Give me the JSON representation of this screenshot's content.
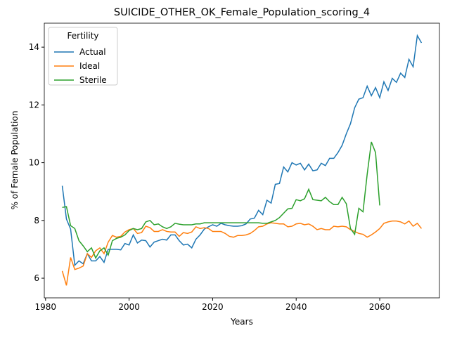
{
  "chart_data": {
    "type": "line",
    "title": "SUICIDE_OTHER_OK_Female_Population_scoring_4",
    "x_label": "Years",
    "y_label": "% of Female Population",
    "legend_title": "Fertility",
    "legend_loc": "upper left",
    "x": [
      1984,
      1985,
      1986,
      1987,
      1988,
      1989,
      1990,
      1991,
      1992,
      1993,
      1994,
      1995,
      1996,
      1997,
      1998,
      1999,
      2000,
      2001,
      2002,
      2003,
      2004,
      2005,
      2006,
      2007,
      2008,
      2009,
      2010,
      2011,
      2012,
      2013,
      2014,
      2015,
      2016,
      2017,
      2018,
      2019,
      2020,
      2021,
      2022,
      2023,
      2024,
      2025,
      2026,
      2027,
      2028,
      2029,
      2030,
      2031,
      2032,
      2033,
      2034,
      2035,
      2036,
      2037,
      2038,
      2039,
      2040,
      2041,
      2042,
      2043,
      2044,
      2045,
      2046,
      2047,
      2048,
      2049,
      2050,
      2051,
      2052,
      2053,
      2054,
      2055,
      2056,
      2057,
      2058,
      2059,
      2060,
      2061,
      2062,
      2063,
      2064,
      2065,
      2066,
      2067,
      2068,
      2069,
      2070
    ],
    "series": [
      {
        "name": "Actual",
        "color": "#1f77b4",
        "values": [
          9.2,
          8.05,
          7.7,
          6.45,
          6.6,
          6.5,
          6.85,
          6.6,
          6.6,
          6.75,
          6.55,
          7.0,
          7.0,
          7.0,
          6.98,
          7.2,
          7.15,
          7.5,
          7.22,
          7.32,
          7.3,
          7.08,
          7.25,
          7.3,
          7.35,
          7.32,
          7.5,
          7.5,
          7.3,
          7.15,
          7.18,
          7.05,
          7.35,
          7.5,
          7.7,
          7.78,
          7.85,
          7.8,
          7.9,
          7.85,
          7.82,
          7.8,
          7.8,
          7.82,
          7.88,
          8.05,
          8.08,
          8.35,
          8.2,
          8.7,
          8.6,
          9.25,
          9.28,
          9.85,
          9.68,
          10.0,
          9.92,
          9.98,
          9.75,
          9.95,
          9.72,
          9.75,
          9.98,
          9.9,
          10.15,
          10.15,
          10.35,
          10.6,
          11.0,
          11.35,
          11.9,
          12.2,
          12.25,
          12.65,
          12.32,
          12.6,
          12.25,
          12.8,
          12.5,
          12.92,
          12.78,
          13.1,
          12.95,
          13.58,
          13.32,
          14.4,
          14.15
        ]
      },
      {
        "name": "Ideal",
        "color": "#ff7f0e",
        "values": [
          6.25,
          5.75,
          6.72,
          6.3,
          6.35,
          6.42,
          6.85,
          6.72,
          6.95,
          7.05,
          6.85,
          7.25,
          7.48,
          7.42,
          7.45,
          7.6,
          7.68,
          7.72,
          7.55,
          7.58,
          7.8,
          7.75,
          7.62,
          7.62,
          7.68,
          7.62,
          7.6,
          7.6,
          7.45,
          7.58,
          7.55,
          7.6,
          7.78,
          7.72,
          7.75,
          7.72,
          7.62,
          7.62,
          7.62,
          7.55,
          7.45,
          7.42,
          7.48,
          7.48,
          7.5,
          7.55,
          7.65,
          7.78,
          7.8,
          7.88,
          7.92,
          7.9,
          7.88,
          7.88,
          7.78,
          7.8,
          7.88,
          7.9,
          7.85,
          7.88,
          7.8,
          7.68,
          7.72,
          7.68,
          7.68,
          7.8,
          7.78,
          7.8,
          7.78,
          7.68,
          7.62,
          7.55,
          7.52,
          7.42,
          7.5,
          7.6,
          7.72,
          7.9,
          7.95,
          7.98,
          7.98,
          7.95,
          7.88,
          7.98,
          7.8,
          7.9,
          7.72
        ]
      },
      {
        "name": "Sterile",
        "color": "#2ca02c",
        "values": [
          8.45,
          8.48,
          7.82,
          7.72,
          7.3,
          7.12,
          6.92,
          7.05,
          6.7,
          6.95,
          7.05,
          6.8,
          7.3,
          7.38,
          7.42,
          7.5,
          7.65,
          7.72,
          7.68,
          7.72,
          7.95,
          8.0,
          7.85,
          7.88,
          7.78,
          7.72,
          7.78,
          7.9,
          7.87,
          7.85,
          7.85,
          7.85,
          7.88,
          7.88,
          7.92,
          7.92,
          7.92,
          7.92,
          7.92,
          7.92,
          7.92,
          7.92,
          7.92,
          7.92,
          7.92,
          7.92,
          7.92,
          7.92,
          7.9,
          7.9,
          7.95,
          8.0,
          8.1,
          8.25,
          8.4,
          8.42,
          8.72,
          8.68,
          8.75,
          9.08,
          8.72,
          8.7,
          8.68,
          8.8,
          8.65,
          8.55,
          8.55,
          8.8,
          8.58,
          7.72,
          7.52,
          8.42,
          8.3,
          9.6,
          10.72,
          10.35,
          8.52,
          null,
          null,
          null,
          null,
          null,
          null,
          null,
          null,
          null,
          null
        ]
      }
    ],
    "xlim": [
      1979.7,
      2074.3
    ],
    "ylim": [
      5.32,
      14.83
    ],
    "xticks": [
      1980,
      2000,
      2020,
      2040,
      2060
    ],
    "yticks": [
      6,
      8,
      10,
      12,
      14
    ]
  }
}
